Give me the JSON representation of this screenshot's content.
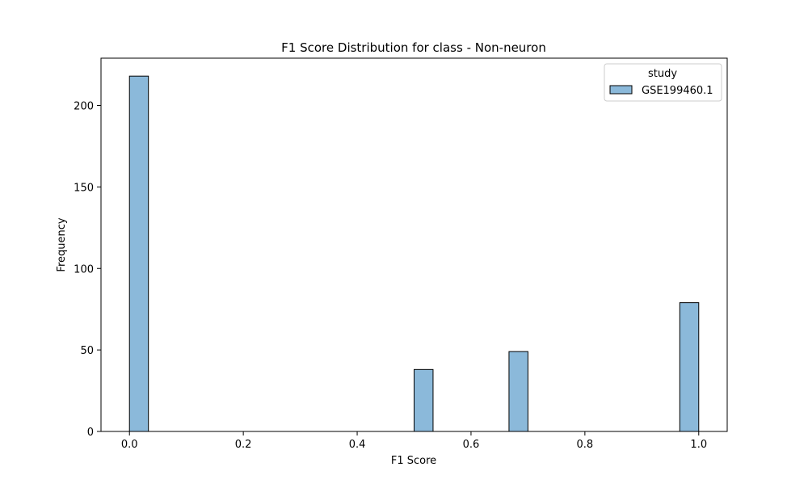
{
  "chart_data": {
    "type": "histogram",
    "title": "F1 Score Distribution for class - Non-neuron",
    "xlabel": "F1 Score",
    "ylabel": "Frequency",
    "xlim": [
      -0.05,
      1.05
    ],
    "ylim": [
      0,
      229
    ],
    "xticks": [
      0.0,
      0.2,
      0.4,
      0.6,
      0.8,
      1.0
    ],
    "xtick_labels": [
      "0.0",
      "0.2",
      "0.4",
      "0.6",
      "0.8",
      "1.0"
    ],
    "yticks": [
      0,
      50,
      100,
      150,
      200
    ],
    "ytick_labels": [
      "0",
      "50",
      "100",
      "150",
      "200"
    ],
    "bins": [
      {
        "x0": 0.0,
        "x1": 0.0333,
        "count": 218
      },
      {
        "x0": 0.5,
        "x1": 0.5333,
        "count": 38
      },
      {
        "x0": 0.6667,
        "x1": 0.7,
        "count": 49
      },
      {
        "x0": 0.9667,
        "x1": 1.0,
        "count": 79
      }
    ],
    "series": [
      {
        "name": "GSE199460.1",
        "color": "#8bb9da"
      }
    ],
    "legend": {
      "title": "study",
      "placement": "top-right"
    },
    "grid": false
  }
}
